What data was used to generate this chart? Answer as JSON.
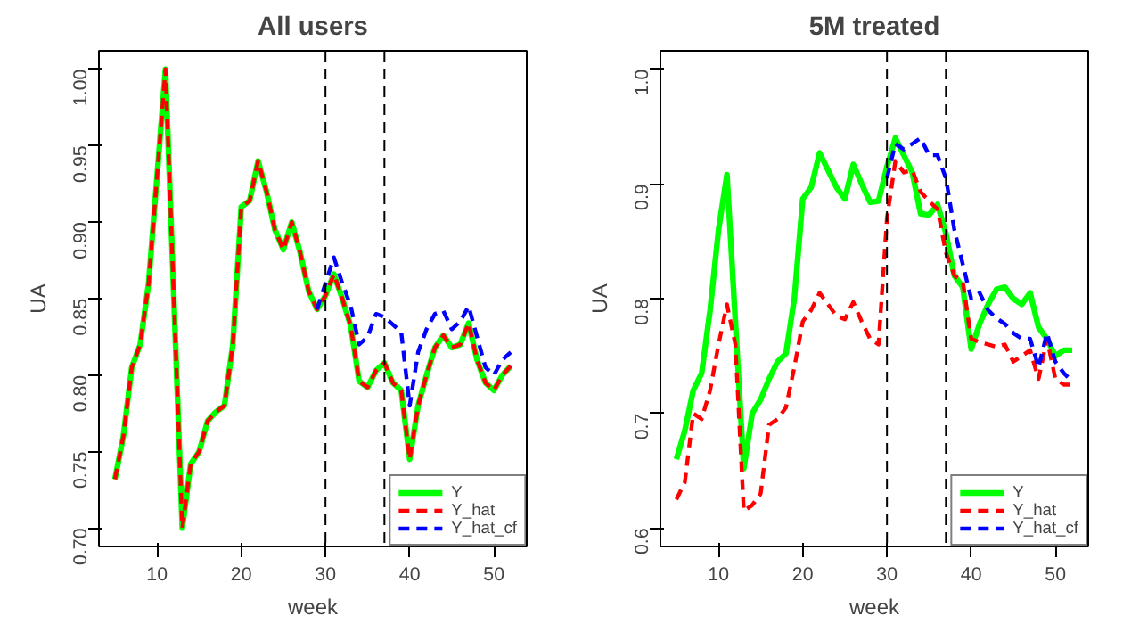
{
  "chart_data": [
    {
      "type": "line",
      "title": "All users",
      "xlabel": "week",
      "ylabel": "UA",
      "x": [
        5,
        6,
        7,
        8,
        9,
        10,
        11,
        12,
        13,
        14,
        15,
        16,
        17,
        18,
        19,
        20,
        21,
        22,
        23,
        24,
        25,
        26,
        27,
        28,
        29,
        30,
        31,
        32,
        33,
        34,
        35,
        36,
        37,
        38,
        39,
        40,
        41,
        42,
        43,
        44,
        45,
        46,
        47,
        48,
        49,
        50,
        51,
        52
      ],
      "series": [
        {
          "name": "Y",
          "color": "#00ff00",
          "line_style": "solid",
          "values": [
            0.732,
            0.76,
            0.805,
            0.82,
            0.86,
            0.93,
            1.0,
            0.85,
            0.7,
            0.742,
            0.75,
            0.77,
            0.776,
            0.78,
            0.82,
            0.91,
            0.914,
            0.94,
            0.92,
            0.895,
            0.882,
            0.9,
            0.88,
            0.855,
            0.843,
            0.852,
            0.866,
            0.85,
            0.832,
            0.796,
            0.792,
            0.803,
            0.808,
            0.795,
            0.79,
            0.745,
            0.78,
            0.8,
            0.818,
            0.826,
            0.818,
            0.82,
            0.834,
            0.81,
            0.795,
            0.79,
            0.8,
            0.806
          ]
        },
        {
          "name": "Y_hat",
          "color": "#ff0000",
          "line_style": "dashed",
          "values": [
            0.732,
            0.76,
            0.805,
            0.82,
            0.86,
            0.93,
            1.0,
            0.85,
            0.7,
            0.742,
            0.75,
            0.77,
            0.776,
            0.78,
            0.82,
            0.91,
            0.914,
            0.94,
            0.92,
            0.895,
            0.882,
            0.9,
            0.88,
            0.855,
            0.843,
            0.852,
            0.866,
            0.85,
            0.832,
            0.796,
            0.792,
            0.803,
            0.808,
            0.795,
            0.79,
            0.745,
            0.78,
            0.8,
            0.818,
            0.826,
            0.818,
            0.82,
            0.834,
            0.81,
            0.795,
            0.79,
            0.8,
            0.806
          ]
        },
        {
          "name": "Y_hat_cf",
          "color": "#0000ff",
          "line_style": "dashed",
          "values": [
            null,
            null,
            null,
            null,
            null,
            null,
            null,
            null,
            null,
            null,
            null,
            null,
            null,
            null,
            null,
            null,
            null,
            null,
            null,
            null,
            null,
            null,
            null,
            null,
            0.843,
            0.86,
            0.877,
            0.86,
            0.845,
            0.82,
            0.825,
            0.84,
            0.838,
            0.833,
            0.828,
            0.78,
            0.815,
            0.83,
            0.84,
            0.842,
            0.83,
            0.835,
            0.845,
            0.825,
            0.805,
            0.8,
            0.81,
            0.815
          ]
        }
      ],
      "xlim": [
        3.1,
        53.9
      ],
      "ylim": [
        0.688,
        1.012
      ],
      "xticks": [
        10,
        20,
        30,
        40,
        50
      ],
      "yticks": [
        {
          "value": 0.7,
          "label": "0.70"
        },
        {
          "value": 0.75,
          "label": "0.75"
        },
        {
          "value": 0.8,
          "label": "0.80"
        },
        {
          "value": 0.85,
          "label": "0.85"
        },
        {
          "value": 0.9,
          "label": "0.90"
        },
        {
          "value": 0.95,
          "label": "0.95"
        },
        {
          "value": 1.0,
          "label": "1.00"
        }
      ],
      "ref_lines": [
        {
          "axis": "x",
          "value": 30,
          "color": "#000000",
          "line_style": "dashed"
        },
        {
          "axis": "x",
          "value": 37,
          "color": "#000000",
          "line_style": "dashed"
        }
      ],
      "grid": false,
      "legend": "bottom right"
    },
    {
      "type": "line",
      "title": "5M treated",
      "xlabel": "week",
      "ylabel": "UA",
      "x": [
        5,
        6,
        7,
        8,
        9,
        10,
        11,
        12,
        13,
        14,
        15,
        16,
        17,
        18,
        19,
        20,
        21,
        22,
        23,
        24,
        25,
        26,
        27,
        28,
        29,
        30,
        31,
        32,
        33,
        34,
        35,
        36,
        37,
        38,
        39,
        40,
        41,
        42,
        43,
        44,
        45,
        46,
        47,
        48,
        49,
        50,
        51,
        52
      ],
      "series": [
        {
          "name": "Y",
          "color": "#00ff00",
          "line_style": "solid",
          "values": [
            0.66,
            0.685,
            0.72,
            0.735,
            0.79,
            0.86,
            0.908,
            0.78,
            0.652,
            0.7,
            0.712,
            0.73,
            0.745,
            0.752,
            0.8,
            0.887,
            0.897,
            0.927,
            0.912,
            0.897,
            0.887,
            0.917,
            0.9,
            0.884,
            0.885,
            0.915,
            0.94,
            0.925,
            0.91,
            0.874,
            0.873,
            0.882,
            0.857,
            0.82,
            0.81,
            0.756,
            0.778,
            0.795,
            0.808,
            0.81,
            0.8,
            0.795,
            0.805,
            0.775,
            0.765,
            0.75,
            0.755,
            0.755
          ]
        },
        {
          "name": "Y_hat",
          "color": "#ff0000",
          "line_style": "dashed",
          "values": [
            0.625,
            0.64,
            0.7,
            0.695,
            0.72,
            0.76,
            0.795,
            0.76,
            0.615,
            0.62,
            0.63,
            0.69,
            0.695,
            0.705,
            0.74,
            0.78,
            0.79,
            0.805,
            0.795,
            0.785,
            0.782,
            0.797,
            0.78,
            0.765,
            0.76,
            0.87,
            0.92,
            0.91,
            0.912,
            0.893,
            0.885,
            0.878,
            0.84,
            0.82,
            0.815,
            0.765,
            0.762,
            0.76,
            0.758,
            0.76,
            0.745,
            0.75,
            0.755,
            0.73,
            0.765,
            0.73,
            0.725,
            0.725
          ]
        },
        {
          "name": "Y_hat_cf",
          "color": "#0000ff",
          "line_style": "dashed",
          "values": [
            null,
            null,
            null,
            null,
            null,
            null,
            null,
            null,
            null,
            null,
            null,
            null,
            null,
            null,
            null,
            null,
            null,
            null,
            null,
            null,
            null,
            null,
            null,
            null,
            null,
            0.905,
            0.935,
            0.93,
            0.935,
            0.94,
            0.925,
            0.925,
            0.905,
            0.86,
            0.83,
            0.8,
            0.805,
            0.79,
            0.783,
            0.778,
            0.77,
            0.765,
            0.765,
            0.74,
            0.77,
            0.745,
            0.735,
            0.728
          ]
        }
      ],
      "xlim": [
        3.1,
        53.9
      ],
      "ylim": [
        0.584,
        1.016
      ],
      "xticks": [
        10,
        20,
        30,
        40,
        50
      ],
      "yticks": [
        0.6,
        0.7,
        0.8,
        0.9,
        {
          "value": 1.0,
          "label": "1.0"
        }
      ],
      "ref_lines": [
        {
          "axis": "x",
          "value": 30,
          "color": "#000000",
          "line_style": "dashed"
        },
        {
          "axis": "x",
          "value": 37,
          "color": "#000000",
          "line_style": "dashed"
        }
      ],
      "grid": false,
      "legend": "bottom right"
    }
  ]
}
